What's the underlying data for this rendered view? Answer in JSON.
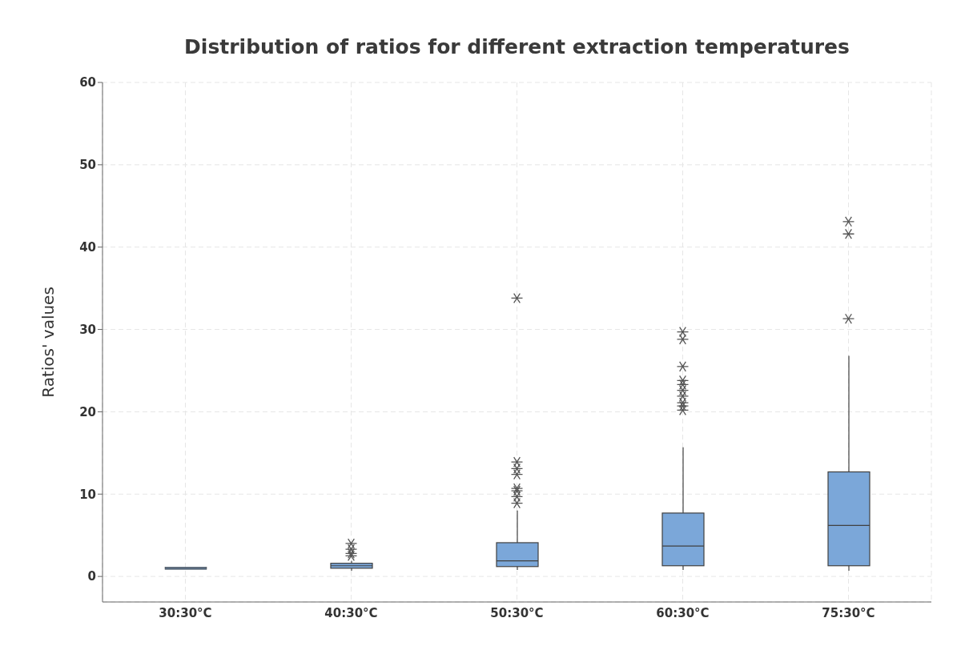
{
  "chart_data": {
    "type": "box",
    "title": "Distribution of ratios for different extraction temperatures",
    "ylabel": "Ratios' values",
    "categories": [
      "30:30°C",
      "40:30°C",
      "50:30°C",
      "60:30°C",
      "75:30°C"
    ],
    "color": "#7ba7d9",
    "marker": "star",
    "grid": true,
    "legend": false,
    "ylim": [
      -3.1,
      60
    ],
    "yticks": [
      0,
      10,
      20,
      30,
      40,
      50,
      60
    ],
    "boxes": [
      {
        "low": 1,
        "q1": 1,
        "median": 1,
        "q3": 1,
        "high": 1
      },
      {
        "low": 0.7,
        "q1": 1.0,
        "median": 1.3,
        "q3": 1.6,
        "high": 1.9,
        "outliers": [
          2.5,
          2.8,
          3.3,
          4.0
        ]
      },
      {
        "low": 0.8,
        "q1": 1.2,
        "median": 1.9,
        "q3": 4.1,
        "high": 8.0,
        "outliers": [
          8.9,
          9.7,
          10.4,
          10.7,
          12.4,
          13.1,
          13.9,
          33.8
        ]
      },
      {
        "low": 0.8,
        "q1": 1.3,
        "median": 3.7,
        "q3": 7.7,
        "high": 15.7,
        "outliers": [
          20.2,
          20.7,
          21.1,
          21.9,
          22.6,
          23.3,
          23.8,
          25.5,
          28.8,
          29.7
        ]
      },
      {
        "low": 0.7,
        "q1": 1.3,
        "median": 6.2,
        "q3": 12.7,
        "high": 26.8,
        "outliers": [
          31.3,
          41.6,
          43.1
        ]
      }
    ]
  }
}
